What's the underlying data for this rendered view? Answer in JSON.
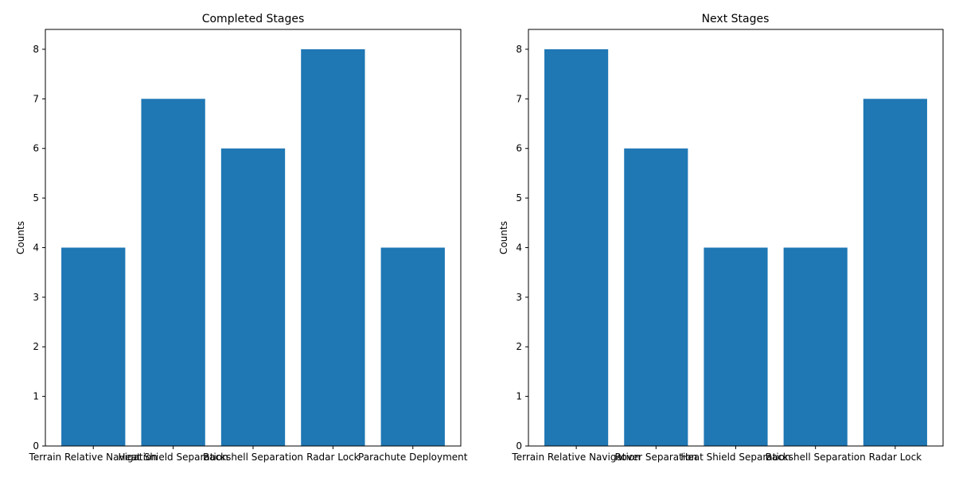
{
  "colors": {
    "bar": "#1f77b4",
    "axis": "#000000"
  },
  "chart_data": [
    {
      "type": "bar",
      "title": "Completed Stages",
      "xlabel": "",
      "ylabel": "Counts",
      "categories": [
        "Terrain Relative Navigation",
        "Heat Shield Separation",
        "Backshell Separation",
        "Radar Lock",
        "Parachute Deployment"
      ],
      "values": [
        4,
        7,
        6,
        8,
        4
      ],
      "ylim": [
        0,
        8.4
      ],
      "yticks": [
        0,
        1,
        2,
        3,
        4,
        5,
        6,
        7,
        8
      ],
      "grid": false
    },
    {
      "type": "bar",
      "title": "Next Stages",
      "xlabel": "",
      "ylabel": "Counts",
      "categories": [
        "Terrain Relative Navigation",
        "Rover Separation",
        "Heat Shield Separation",
        "Backshell Separation",
        "Radar Lock"
      ],
      "values": [
        8,
        6,
        4,
        4,
        7
      ],
      "ylim": [
        0,
        8.4
      ],
      "yticks": [
        0,
        1,
        2,
        3,
        4,
        5,
        6,
        7,
        8
      ],
      "grid": false
    }
  ]
}
